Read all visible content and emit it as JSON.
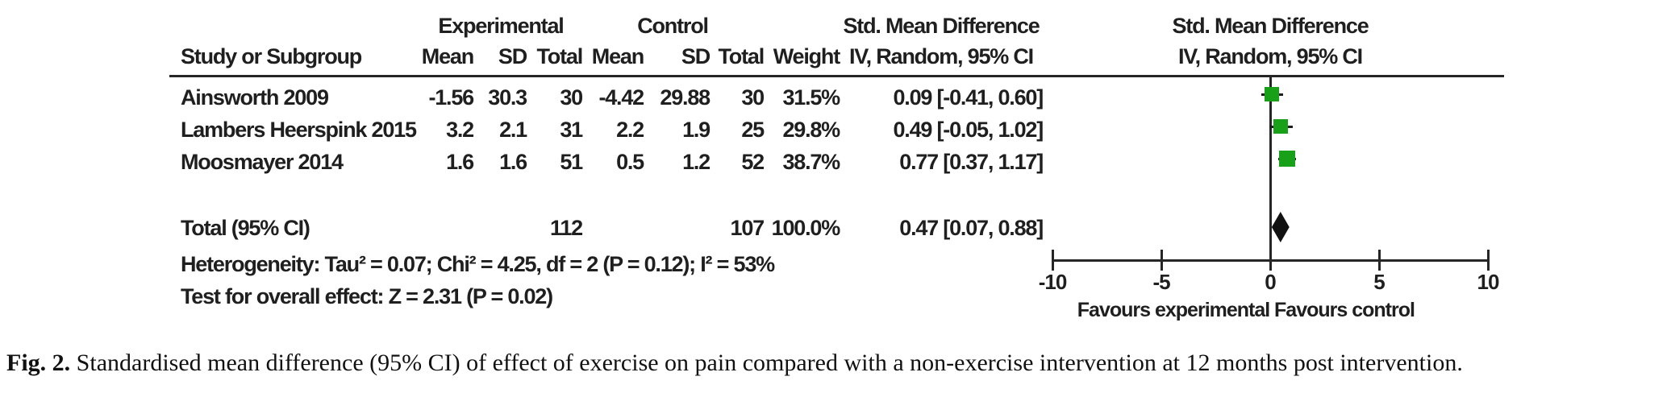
{
  "figure": {
    "caption_label": "Fig. 2.",
    "caption_text": "Standardised mean difference (95% CI) of effect of exercise on pain compared with a non-exercise intervention at 12 months post intervention."
  },
  "table": {
    "group_headers": {
      "experimental": "Experimental",
      "control": "Control",
      "smd": "Std. Mean Difference",
      "plot_smd": "Std. Mean Difference"
    },
    "col_headers": {
      "study": "Study or Subgroup",
      "mean": "Mean",
      "sd": "SD",
      "total": "Total",
      "mean2": "Mean",
      "sd2": "SD",
      "total2": "Total",
      "weight": "Weight",
      "ci": "IV, Random, 95% CI",
      "plot_ci": "IV, Random, 95% CI"
    }
  },
  "chart_data": {
    "type": "scatter",
    "subtype": "forest-plot",
    "effect_measure": "Std. Mean Difference, IV, Random, 95% CI",
    "xlim": [
      -10,
      10
    ],
    "xticks": [
      -10,
      -5,
      0,
      5,
      10
    ],
    "xlabel_left": "Favours experimental",
    "xlabel_right": "Favours control",
    "marker_color": "#18A018",
    "diamond_color": "#111111",
    "grid": false,
    "studies": [
      {
        "name": "Ainsworth 2009",
        "exp": {
          "mean": "-1.56",
          "sd": "30.3",
          "total": "30"
        },
        "ctl": {
          "mean": "-4.42",
          "sd": "29.88",
          "total": "30"
        },
        "weight": "31.5%",
        "weight_pct": 31.5,
        "ci_text": "0.09 [-0.41, 0.60]",
        "smd": 0.09,
        "ci_low": -0.41,
        "ci_high": 0.6
      },
      {
        "name": "Lambers Heerspink 2015",
        "exp": {
          "mean": "3.2",
          "sd": "2.1",
          "total": "31"
        },
        "ctl": {
          "mean": "2.2",
          "sd": "1.9",
          "total": "25"
        },
        "weight": "29.8%",
        "weight_pct": 29.8,
        "ci_text": "0.49 [-0.05, 1.02]",
        "smd": 0.49,
        "ci_low": -0.05,
        "ci_high": 1.02
      },
      {
        "name": "Moosmayer 2014",
        "exp": {
          "mean": "1.6",
          "sd": "1.6",
          "total": "51"
        },
        "ctl": {
          "mean": "0.5",
          "sd": "1.2",
          "total": "52"
        },
        "weight": "38.7%",
        "weight_pct": 38.7,
        "ci_text": "0.77 [0.37, 1.17]",
        "smd": 0.77,
        "ci_low": 0.37,
        "ci_high": 1.17
      }
    ],
    "total": {
      "name": "Total (95% CI)",
      "exp_total": "112",
      "ctl_total": "107",
      "weight": "100.0%",
      "ci_text": "0.47 [0.07, 0.88]",
      "smd": 0.47,
      "ci_low": 0.07,
      "ci_high": 0.88
    },
    "heterogeneity": "Heterogeneity: Tau² = 0.07; Chi² = 4.25, df = 2 (P = 0.12); I² = 53%",
    "overall_effect": "Test for overall effect: Z = 2.31 (P = 0.02)"
  }
}
